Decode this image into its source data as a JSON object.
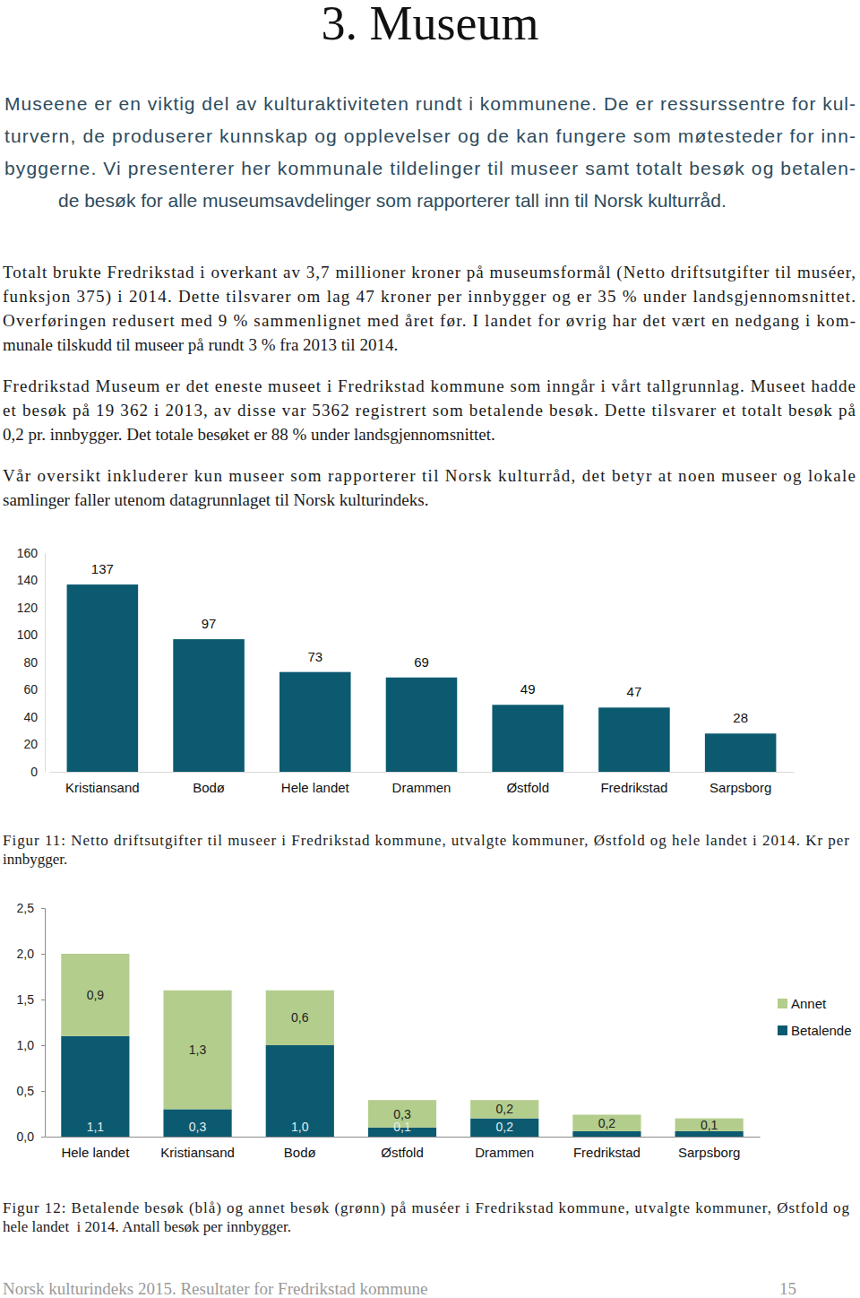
{
  "title": "3. Museum",
  "intro": [
    "Museene er en viktig del av kulturaktiviteten rundt i kommunene. De er ressurssentre for kul-",
    "turvern, de produserer kunnskap og opplevelser og de kan fungere som møtesteder for inn-",
    "byggerne. Vi presenterer her kommunale tildelinger til museer samt totalt besøk og betalen-",
    "de besøk for alle museumsavdelinger som rapporterer tall inn til Norsk kulturråd."
  ],
  "paragraphs": [
    [
      "Totalt brukte Fredrikstad i overkant av 3,7 millioner kroner på museumsformål (Netto driftsutgifter til muséer,",
      "funksjon 375) i 2014. Dette tilsvarer om lag 47 kroner per innbygger og er 35 % under landsgjennomsnittet.",
      "Overføringen redusert med 9 % sammenlignet med året før. I landet for øvrig har det vært en nedgang i kom-",
      "munale tilskudd til museer på rundt 3 % fra 2013 til 2014."
    ],
    [
      "Fredrikstad Museum er det eneste museet i Fredrikstad kommune som inngår i vårt tallgrunnlag. Museet hadde",
      "et besøk på 19 362 i 2013, av disse var 5362 registrert som betalende besøk. Dette tilsvarer et totalt besøk på",
      "0,2 pr. innbygger. Det totale besøket er 88 % under landsgjennomsnittet."
    ],
    [
      "Vår oversikt inkluderer kun museer som rapporterer til Norsk kulturråd, det betyr at noen museer og lokale",
      "samlinger faller utenom datagrunnlaget til Norsk kulturindeks."
    ]
  ],
  "chart_data": [
    {
      "type": "bar",
      "categories": [
        "Kristiansand",
        "Bodø",
        "Hele landet",
        "Drammen",
        "Østfold",
        "Fredrikstad",
        "Sarpsborg"
      ],
      "values": [
        137,
        97,
        73,
        69,
        49,
        47,
        28
      ],
      "color": "#0b5a70",
      "ylim": [
        0,
        160
      ],
      "yticks": [
        0,
        20,
        40,
        60,
        80,
        100,
        120,
        140,
        160
      ],
      "data_labels": true
    },
    {
      "type": "bar",
      "stacked": true,
      "categories": [
        "Hele landet",
        "Kristiansand",
        "Bodø",
        "Østfold",
        "Drammen",
        "Fredrikstad",
        "Sarpsborg"
      ],
      "series": [
        {
          "name": "Betalende",
          "color": "#0b5a70",
          "values": [
            1.1,
            0.3,
            1.0,
            0.1,
            0.2,
            0.06,
            0.06
          ],
          "value_labels": [
            "1,1",
            "0,3",
            "1,0",
            "0,1",
            "0,2",
            null,
            null
          ]
        },
        {
          "name": "Annet",
          "color": "#b3cd8c",
          "values": [
            0.9,
            1.3,
            0.6,
            0.3,
            0.2,
            0.18,
            0.14
          ],
          "value_labels": [
            "0,9",
            "1,3",
            "0,6",
            "0,3",
            "0,2",
            "0,2",
            "0,1"
          ]
        }
      ],
      "ylim": [
        0,
        2.5
      ],
      "yticks": [
        {
          "value": 0,
          "label": "0,0"
        },
        {
          "value": 0.5,
          "label": "0,5"
        },
        {
          "value": 1,
          "label": "1,0"
        },
        {
          "value": 1.5,
          "label": "1,5"
        },
        {
          "value": 2,
          "label": "2,0"
        },
        {
          "value": 2.5,
          "label": "2,5"
        }
      ],
      "data_labels": true,
      "legend": "right"
    }
  ],
  "captions": [
    [
      "Figur 11: Netto driftsutgifter til museer i Fredrikstad kommune, utvalgte kommuner, Østfold og hele landet i 2014. Kr per",
      "innbygger."
    ],
    [
      "Figur 12: Betalende besøk (blå) og annet besøk (grønn) på muséer i Fredrikstad kommune, utvalgte kommuner, Østfold og",
      "hele landet  i 2014. Antall besøk per innbygger."
    ]
  ],
  "footer": {
    "text": "Norsk kulturindeks 2015. Resultater for Fredrikstad kommune",
    "page": "15"
  }
}
